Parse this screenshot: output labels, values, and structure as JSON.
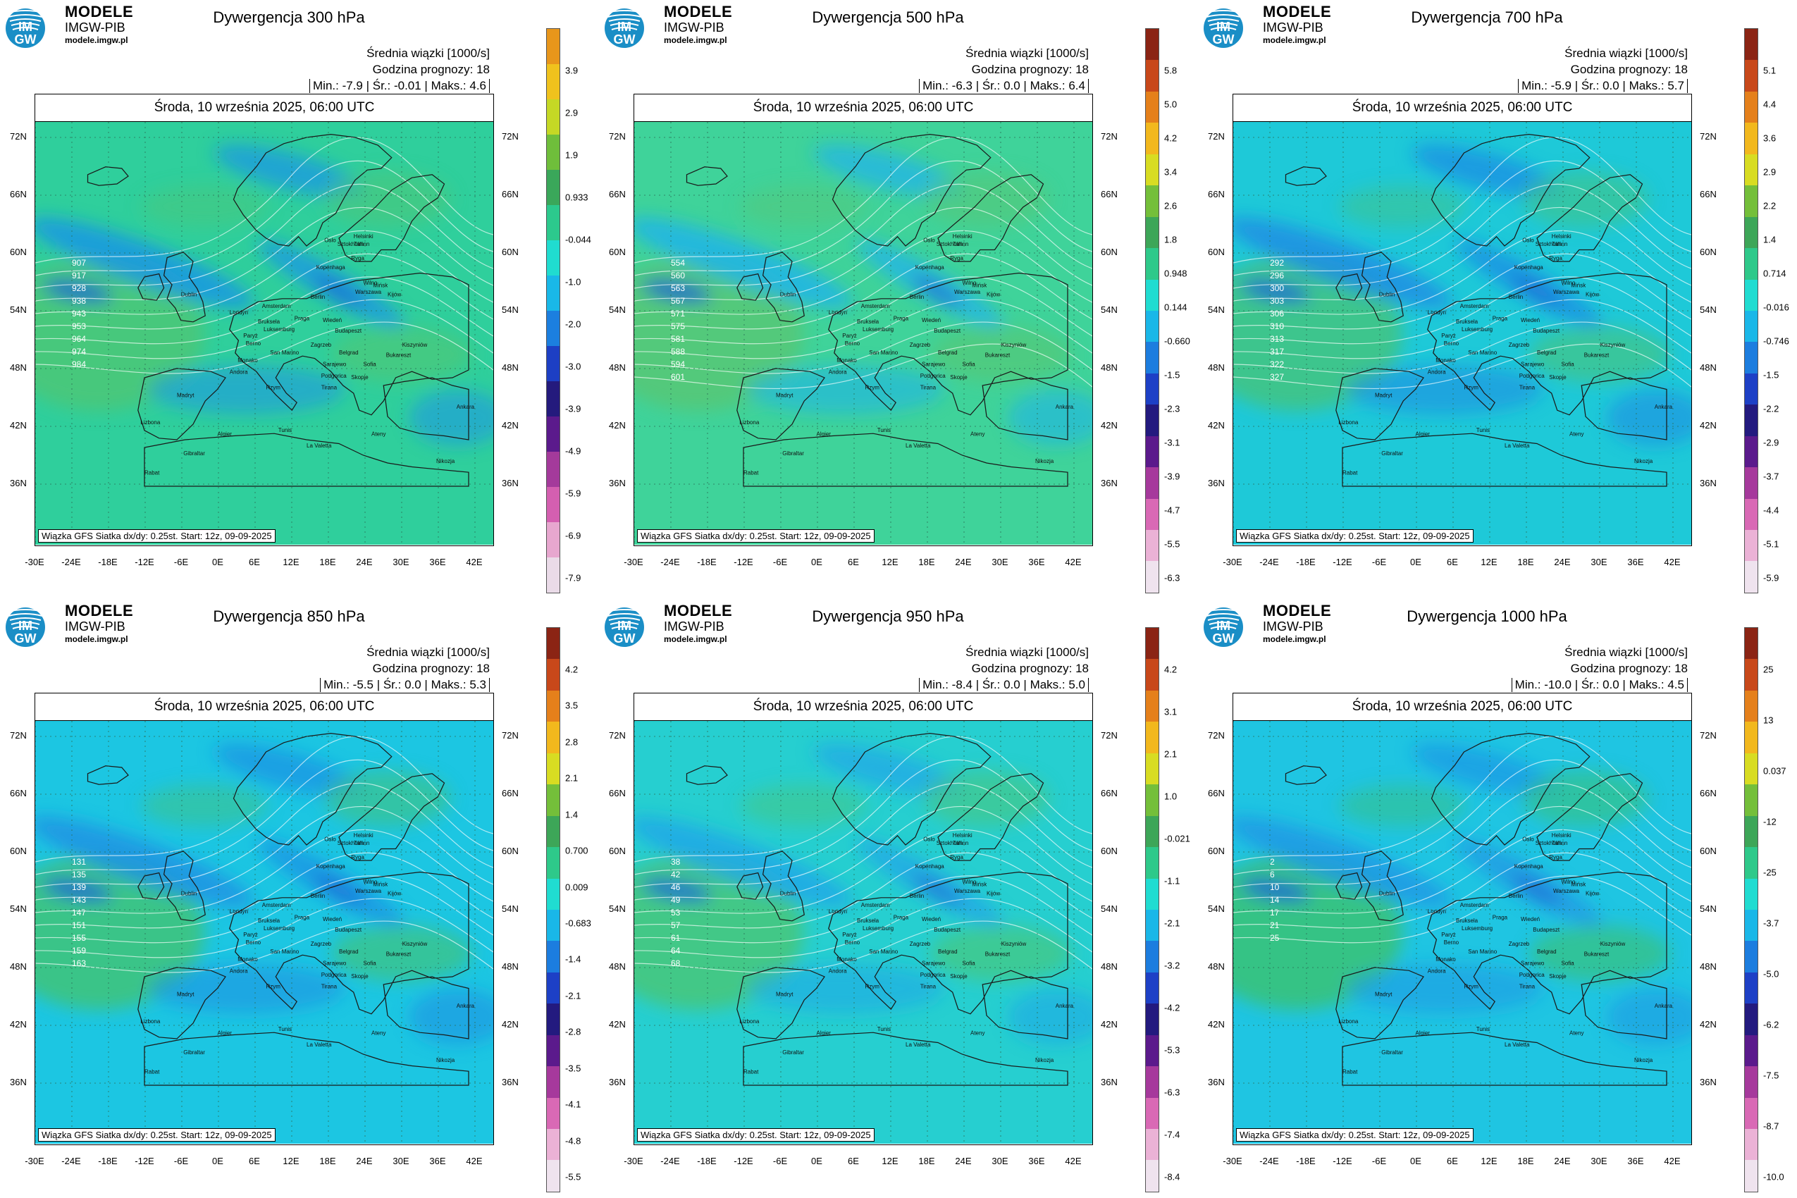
{
  "common": {
    "brand_line1": "MODELE",
    "brand_line2": "IMGW-PIB",
    "brand_url": "modele.imgw.pl",
    "logo_text_top": "IM",
    "logo_text_bottom": "GW",
    "subtitle": "Średnia wiązki [1000/s]",
    "forecast_hour": "Godzina prognozy: 18",
    "date": "Środa, 10 września 2025, 06:00 UTC",
    "footer": "Wiązka GFS Siatka dx/dy: 0.25st. Start: 12z, 09-09-2025",
    "lat_labels": [
      "72N",
      "66N",
      "60N",
      "54N",
      "48N",
      "42N",
      "36N"
    ],
    "lon_labels": [
      "-30E",
      "-24E",
      "-18E",
      "-12E",
      "-6E",
      "0E",
      "6E",
      "12E",
      "18E",
      "24E",
      "30E",
      "36E",
      "42E"
    ],
    "cities": [
      "Oslo",
      "Helsinki",
      "Sztokholm",
      "Tallinn",
      "Ryga",
      "Wilno",
      "Mińsk",
      "Kopenhaga",
      "Warszawa",
      "Kijów",
      "Berlin",
      "Amsterdam",
      "Londyn",
      "Bruksela",
      "Paryż",
      "Luksemburg",
      "Praga",
      "Wiedeń",
      "Budapeszt",
      "Zagrzeb",
      "Belgrad",
      "Bukareszt",
      "Kiszyniów",
      "Sofia",
      "Skopje",
      "Tirana",
      "Rzym",
      "Madryt",
      "Lizbona",
      "Andora",
      "Berno",
      "Ankara",
      "Ateny",
      "Algier",
      "Tunis",
      "La Valetta",
      "Gibraltar",
      "Rabat",
      "Nikozja",
      "Dublin",
      "Monako",
      "Sarajewo",
      "Podgorica",
      "San Marino"
    ]
  },
  "panels": [
    {
      "title": "Dywergencja 300 hPa",
      "stats": "| Min.: -7.9 | Śr.: -0.01 | Maks.: 4.6 |",
      "colorbar_labels": [
        "3.9",
        "2.9",
        "1.9",
        "0.933",
        "-0.044",
        "-1.0",
        "-2.0",
        "-3.0",
        "-3.9",
        "-4.9",
        "-5.9",
        "-6.9",
        "-7.9"
      ],
      "contours": [
        "907",
        "917",
        "928",
        "938",
        "943",
        "953",
        "964",
        "974",
        "984"
      ]
    },
    {
      "title": "Dywergencja 500 hPa",
      "stats": "| Min.: -6.3 | Śr.: 0.0 | Maks.: 6.4 |",
      "colorbar_labels": [
        "5.8",
        "5.0",
        "4.2",
        "3.4",
        "2.6",
        "1.8",
        "0.948",
        "0.144",
        "-0.660",
        "-1.5",
        "-2.3",
        "-3.1",
        "-3.9",
        "-4.7",
        "-5.5",
        "-6.3"
      ],
      "contours": [
        "554",
        "560",
        "563",
        "567",
        "571",
        "575",
        "581",
        "588",
        "594",
        "601"
      ]
    },
    {
      "title": "Dywergencja 700 hPa",
      "stats": "| Min.: -5.9 | Śr.: 0.0 | Maks.: 5.7 |",
      "colorbar_labels": [
        "5.1",
        "4.4",
        "3.6",
        "2.9",
        "2.2",
        "1.4",
        "0.714",
        "-0.016",
        "-0.746",
        "-1.5",
        "-2.2",
        "-2.9",
        "-3.7",
        "-4.4",
        "-5.1",
        "-5.9"
      ],
      "contours": [
        "292",
        "296",
        "300",
        "303",
        "306",
        "310",
        "313",
        "317",
        "322",
        "327"
      ]
    },
    {
      "title": "Dywergencja 850 hPa",
      "stats": "| Min.: -5.5 | Śr.: 0.0 | Maks.: 5.3 |",
      "colorbar_labels": [
        "4.2",
        "3.5",
        "2.8",
        "2.1",
        "1.4",
        "0.700",
        "0.009",
        "-0.683",
        "-1.4",
        "-2.1",
        "-2.8",
        "-3.5",
        "-4.1",
        "-4.8",
        "-5.5"
      ],
      "contours": [
        "131",
        "135",
        "139",
        "143",
        "147",
        "151",
        "155",
        "159",
        "163"
      ]
    },
    {
      "title": "Dywergencja 950 hPa",
      "stats": "| Min.: -8.4 | Śr.: 0.0 | Maks.: 5.0 |",
      "colorbar_labels": [
        "4.2",
        "3.1",
        "2.1",
        "1.0",
        "-0.021",
        "-1.1",
        "-2.1",
        "-3.2",
        "-4.2",
        "-5.3",
        "-6.3",
        "-7.4",
        "-8.4"
      ],
      "contours": [
        "38",
        "42",
        "46",
        "49",
        "53",
        "57",
        "61",
        "64",
        "68"
      ]
    },
    {
      "title": "Dywergencja 1000 hPa",
      "stats": "| Min.: -10.0 | Śr.: 0.0 | Maks.: 4.5 |",
      "colorbar_labels": [
        "25",
        "13",
        "0.037",
        "-12",
        "-25",
        "-3.7",
        "-5.0",
        "-6.2",
        "-7.5",
        "-8.7",
        "-10.0"
      ],
      "contours": [
        "2",
        "6",
        "10",
        "14",
        "17",
        "21",
        "25"
      ]
    }
  ]
}
